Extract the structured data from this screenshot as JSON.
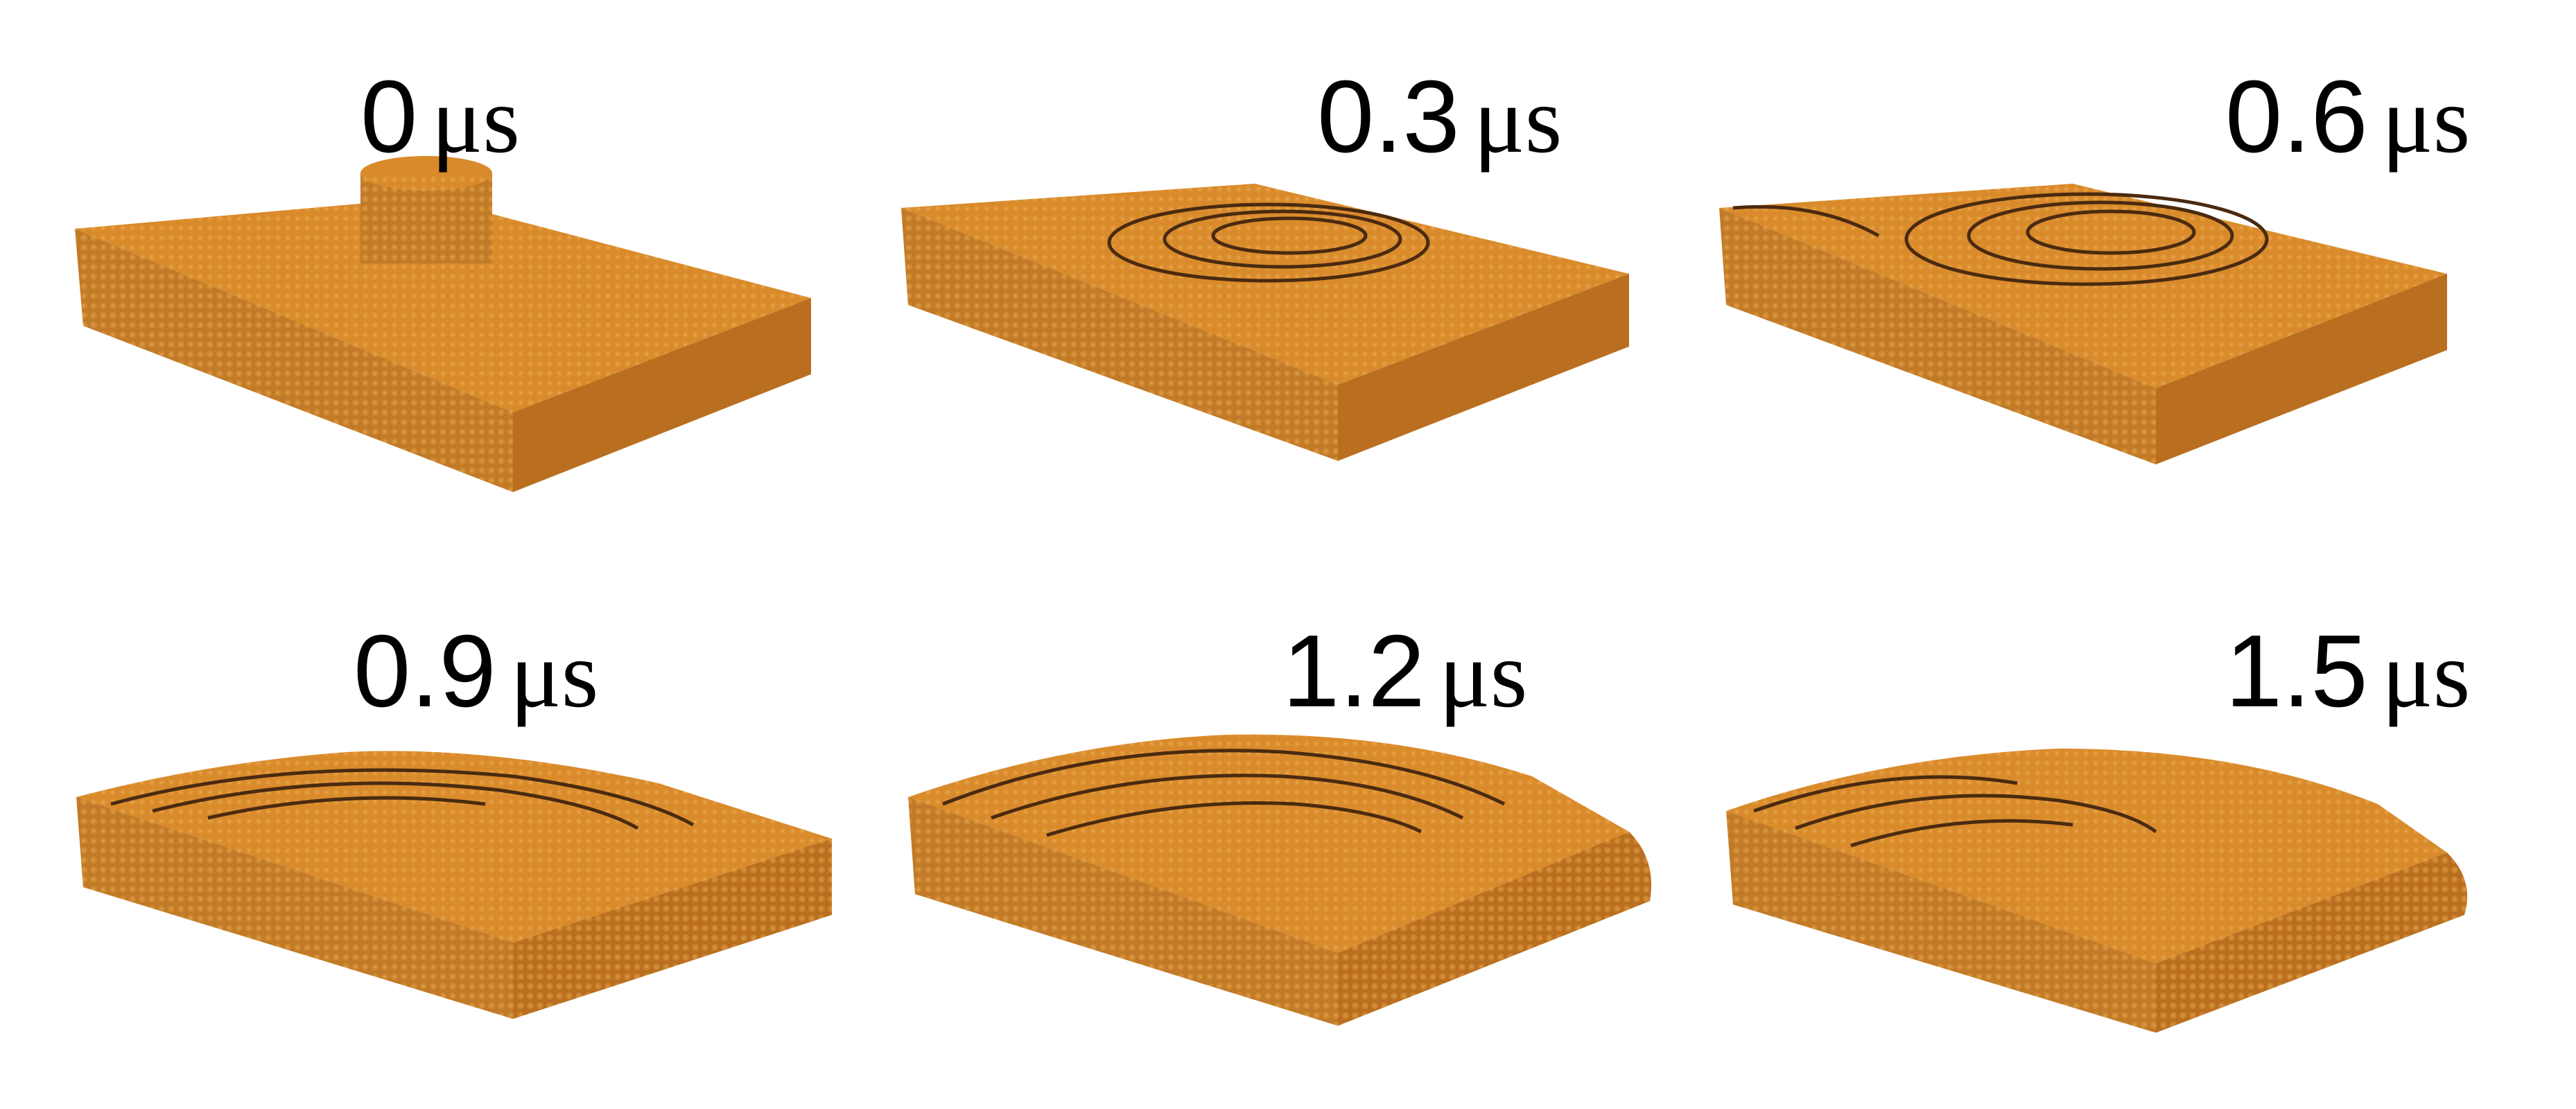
{
  "panels": [
    {
      "time": "0",
      "unit": "μs"
    },
    {
      "time": "0.3",
      "unit": "μs"
    },
    {
      "time": "0.6",
      "unit": "μs"
    },
    {
      "time": "0.9",
      "unit": "μs"
    },
    {
      "time": "1.2",
      "unit": "μs"
    },
    {
      "time": "1.5",
      "unit": "μs"
    }
  ],
  "colors": {
    "top": "#d98a2b",
    "left": "#c17a27",
    "front": "#b96f1f",
    "edge": "#7a4510",
    "step": "#4a2a10"
  }
}
